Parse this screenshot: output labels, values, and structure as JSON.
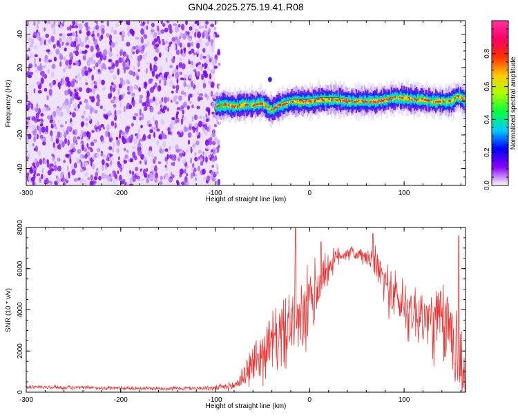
{
  "title": "GN04.2025.275.19.41.R08",
  "chart_data": [
    {
      "type": "heatmap",
      "title": "GN04.2025.275.19.41.R08",
      "xlabel": "Height of straight line (km)",
      "ylabel": "Frequency (Hz)",
      "xlim": [
        -300,
        165
      ],
      "ylim": [
        -50,
        48
      ],
      "xticks": [
        -300,
        -200,
        -100,
        0,
        100
      ],
      "xtick_labels": [
        "-300",
        "-200",
        "-100",
        "0",
        "100"
      ],
      "yticks": [
        -40,
        -20,
        0,
        20,
        40
      ],
      "ytick_labels": [
        "-40",
        "-20",
        "0",
        "20",
        "40"
      ],
      "noise_region_x": [
        -300,
        -100
      ],
      "signal_track": {
        "x": [
          -100,
          -90,
          -80,
          -70,
          -60,
          -50,
          -45,
          -40,
          -35,
          -30,
          -25,
          -20,
          -10,
          0,
          10,
          20,
          30,
          40,
          50,
          60,
          70,
          80,
          90,
          100,
          110,
          120,
          130,
          140,
          150,
          155,
          160,
          165
        ],
        "frequency": [
          -3,
          -2,
          -3,
          -2,
          -2,
          -1,
          -4,
          -5,
          -3,
          -2,
          -1,
          0,
          0,
          0,
          1,
          1,
          1,
          0,
          0,
          0,
          0,
          1,
          2,
          2,
          1,
          1,
          0,
          0,
          0,
          3,
          2,
          0
        ]
      },
      "colorbar": {
        "label": "Normalized spectral amplitude",
        "ticks": [
          0.0,
          0.2,
          0.4,
          0.6,
          0.8
        ],
        "tick_labels": [
          "0.0",
          "0.2",
          "0.4",
          "0.6",
          "0.8"
        ],
        "range": [
          0,
          1
        ],
        "colormap": "rainbow",
        "colors": [
          "#ffffff",
          "#8800ff",
          "#0000ff",
          "#00ccff",
          "#00ff44",
          "#aaff00",
          "#ffcc00",
          "#ff3300",
          "#ff0066",
          "#ff3399"
        ]
      }
    },
    {
      "type": "line",
      "xlabel": "Height of straight line (km)",
      "ylabel": "SNR (10 * v/v)",
      "xlim": [
        -300,
        165
      ],
      "ylim": [
        0,
        8000
      ],
      "xticks": [
        -300,
        -200,
        -100,
        0,
        100
      ],
      "xtick_labels": [
        "-300",
        "-200",
        "-100",
        "0",
        "100"
      ],
      "yticks": [
        0,
        2000,
        4000,
        6000,
        8000
      ],
      "ytick_labels": [
        "0",
        "2000",
        "4000",
        "6000",
        "8000"
      ],
      "color": "#ee3333",
      "series": [
        {
          "x": [
            -300,
            -250,
            -200,
            -150,
            -100,
            -80,
            -70,
            -60,
            -50,
            -40,
            -30,
            -20,
            -15,
            -10,
            0,
            10,
            20,
            30,
            40,
            50,
            60,
            70,
            80,
            90,
            100,
            110,
            120,
            130,
            140,
            150,
            160,
            165
          ],
          "baseline": [
            250,
            220,
            200,
            180,
            200,
            300,
            800,
            1400,
            1900,
            2400,
            2800,
            3200,
            3500,
            3200,
            4200,
            5200,
            6100,
            6600,
            6800,
            6700,
            6500,
            6300,
            5300,
            4600,
            4200,
            3900,
            3600,
            3400,
            3300,
            3100,
            1500,
            600
          ],
          "amplitude": [
            120,
            100,
            100,
            100,
            120,
            250,
            700,
            1100,
            1400,
            1600,
            1800,
            2000,
            2200,
            2000,
            2200,
            1600,
            800,
            500,
            400,
            400,
            500,
            800,
            1200,
            1500,
            1500,
            1600,
            1800,
            2000,
            2200,
            2400,
            2800,
            2000
          ],
          "spikes": [
            {
              "x": -15,
              "y": 8000
            },
            {
              "x": 12,
              "y": 7300
            },
            {
              "x": 67,
              "y": 7700
            },
            {
              "x": 158,
              "y": 7600
            }
          ]
        }
      ]
    }
  ]
}
